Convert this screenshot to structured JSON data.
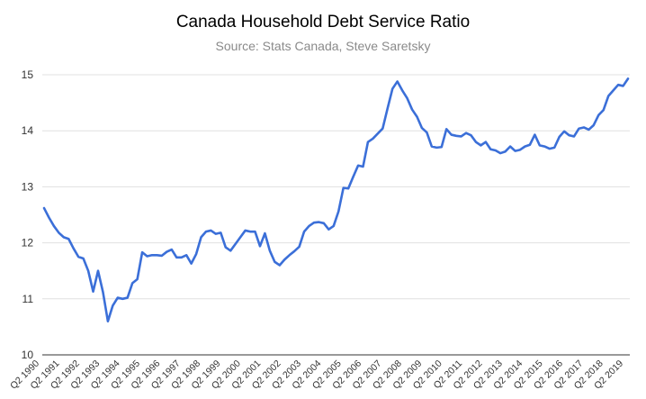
{
  "title": "Canada Household Debt Service Ratio",
  "subtitle": "Source: Stats Canada, Steve Saretsky",
  "chart_data": {
    "type": "line",
    "title": "Canada Household Debt Service Ratio",
    "subtitle": "Source: Stats Canada, Steve Saretsky",
    "xlabel": "",
    "ylabel": "",
    "ylim": [
      10,
      15
    ],
    "yticks": [
      10,
      11,
      12,
      13,
      14,
      15
    ],
    "grid": "horizontal",
    "legend": "none",
    "line_color": "#3b6fd8",
    "grid_color": "#e0e0e0",
    "axis_color": "#333333",
    "xtick_labels": [
      "Q2 1990",
      "Q2 1991",
      "Q2 1992",
      "Q2 1993",
      "Q2 1994",
      "Q2 1995",
      "Q2 1996",
      "Q2 1997",
      "Q2 1998",
      "Q2 1999",
      "Q2 2000",
      "Q2 2001",
      "Q2 2002",
      "Q2 2003",
      "Q2 2004",
      "Q2 2005",
      "Q2 2006",
      "Q2 2007",
      "Q2 2008",
      "Q2 2009",
      "Q2 2010",
      "Q2 2011",
      "Q2 2012",
      "Q2 2013",
      "Q2 2014",
      "Q2 2015",
      "Q2 2016",
      "Q2 2017",
      "Q2 2018",
      "Q2 2019"
    ],
    "series": [
      {
        "values": [
          12.62,
          12.45,
          12.3,
          12.18,
          12.1,
          12.07,
          11.9,
          11.75,
          11.72,
          11.5,
          11.13,
          11.5,
          11.12,
          10.6,
          10.88,
          11.02,
          11.0,
          11.02,
          11.28,
          11.35,
          11.83,
          11.76,
          11.78,
          11.78,
          11.77,
          11.84,
          11.88,
          11.74,
          11.74,
          11.78,
          11.63,
          11.8,
          12.1,
          12.2,
          12.22,
          12.16,
          12.18,
          11.92,
          11.86,
          11.98,
          12.1,
          12.22,
          12.2,
          12.2,
          11.94,
          12.17,
          11.86,
          11.66,
          11.6,
          11.7,
          11.78,
          11.85,
          11.93,
          12.2,
          12.3,
          12.36,
          12.37,
          12.35,
          12.24,
          12.3,
          12.56,
          12.98,
          12.97,
          13.18,
          13.38,
          13.36,
          13.8,
          13.86,
          13.95,
          14.04,
          14.4,
          14.75,
          14.88,
          14.72,
          14.58,
          14.38,
          14.25,
          14.05,
          13.97,
          13.72,
          13.7,
          13.71,
          14.03,
          13.93,
          13.91,
          13.9,
          13.96,
          13.92,
          13.8,
          13.74,
          13.8,
          13.67,
          13.65,
          13.6,
          13.63,
          13.72,
          13.64,
          13.66,
          13.72,
          13.75,
          13.93,
          13.74,
          13.72,
          13.68,
          13.7,
          13.89,
          13.99,
          13.92,
          13.9,
          14.04,
          14.06,
          14.02,
          14.1,
          14.28,
          14.37,
          14.62,
          14.72,
          14.82,
          14.8,
          14.93
        ]
      }
    ]
  }
}
